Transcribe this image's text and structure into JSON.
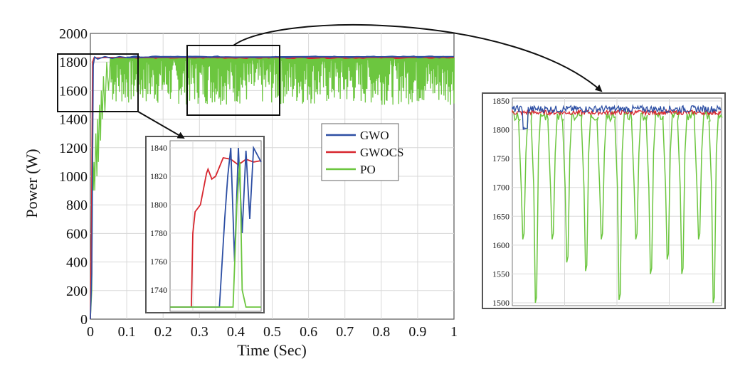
{
  "colors": {
    "GWO": "#2c4ea3",
    "GWOCS": "#d7262e",
    "PO": "#6cc63f",
    "grid": "#d8d8d8",
    "frame": "#555555"
  },
  "chart_data": [
    {
      "type": "line",
      "xlabel": "Time (Sec)",
      "ylabel": "Power (W)",
      "xlim": [
        0,
        1
      ],
      "ylim": [
        0,
        2000
      ],
      "xticks": [
        "0",
        "0.1",
        "0.2",
        "0.3",
        "0.4",
        "0.5",
        "0.6",
        "0.7",
        "0.8",
        "0.9",
        "1"
      ],
      "yticks": [
        "0",
        "200",
        "400",
        "600",
        "800",
        "1000",
        "1200",
        "1400",
        "1600",
        "1800",
        "2000"
      ],
      "grid": true,
      "legend_position": "right-center",
      "series": [
        {
          "name": "GWO",
          "color": "#2c4ea3",
          "x": [
            0,
            0.004,
            0.008,
            0.012,
            0.02,
            0.04,
            0.06,
            0.08,
            0.1,
            0.2,
            0.4,
            0.6,
            0.8,
            1.0
          ],
          "y": [
            0,
            320,
            1780,
            1835,
            1820,
            1838,
            1825,
            1838,
            1830,
            1838,
            1835,
            1838,
            1836,
            1838
          ]
        },
        {
          "name": "GWOCS",
          "color": "#d7262e",
          "x": [
            0,
            0.003,
            0.006,
            0.01,
            0.02,
            0.05,
            0.1,
            0.2,
            0.4,
            0.6,
            0.8,
            1.0
          ],
          "y": [
            0,
            650,
            1800,
            1830,
            1828,
            1832,
            1830,
            1832,
            1830,
            1832,
            1831,
            1832
          ]
        },
        {
          "name": "PO",
          "color": "#6cc63f",
          "x": [
            0,
            0.005,
            0.012,
            0.018,
            0.025,
            0.032,
            0.04,
            0.05,
            0.06,
            0.08,
            0.1,
            0.15,
            0.2,
            0.3,
            0.4,
            0.5,
            0.6,
            0.7,
            0.8,
            0.9,
            1.0
          ],
          "y": [
            0,
            200,
            900,
            1000,
            1250,
            1300,
            1420,
            1450,
            1500,
            1580,
            1600,
            1600,
            1620,
            1580,
            1600,
            1580,
            1600,
            1580,
            1600,
            1560,
            1580
          ]
        }
      ]
    },
    {
      "type": "line",
      "position": "zoom-inset-1",
      "xlim": [
        0,
        0.12
      ],
      "ylim": [
        1725,
        1845
      ],
      "yticks": [
        "1740",
        "1760",
        "1780",
        "1800",
        "1820",
        "1840"
      ],
      "grid": true,
      "series": [
        {
          "name": "GWOCS",
          "color": "#d7262e",
          "x": [
            0.0,
            0.028,
            0.03,
            0.033,
            0.04,
            0.048,
            0.05,
            0.055,
            0.06,
            0.07,
            0.08,
            0.09,
            0.1,
            0.11,
            0.12
          ],
          "y": [
            1728,
            1728,
            1780,
            1795,
            1800,
            1822,
            1825,
            1818,
            1820,
            1833,
            1832,
            1828,
            1832,
            1830,
            1831
          ]
        },
        {
          "name": "GWO",
          "color": "#2c4ea3",
          "x": [
            0.0,
            0.065,
            0.072,
            0.076,
            0.08,
            0.085,
            0.09,
            0.095,
            0.1,
            0.105,
            0.11,
            0.115,
            0.12
          ],
          "y": [
            1728,
            1728,
            1790,
            1820,
            1840,
            1760,
            1840,
            1780,
            1838,
            1790,
            1840,
            1835,
            1830
          ]
        },
        {
          "name": "PO",
          "color": "#6cc63f",
          "x": [
            0.0,
            0.083,
            0.088,
            0.092,
            0.095,
            0.1,
            0.11,
            0.12
          ],
          "y": [
            1728,
            1728,
            1800,
            1830,
            1740,
            1728,
            1728,
            1728
          ]
        }
      ]
    },
    {
      "type": "line",
      "position": "zoom-inset-2",
      "xlim": [
        0.3,
        0.5
      ],
      "ylim": [
        1495,
        1855
      ],
      "yticks": [
        "1500",
        "1550",
        "1600",
        "1650",
        "1700",
        "1750",
        "1800",
        "1850"
      ],
      "grid": true,
      "series": [
        {
          "name": "GWO",
          "color": "#2c4ea3",
          "x": [
            0.3,
            0.4,
            0.5
          ],
          "y": [
            1838,
            1836,
            1838
          ]
        },
        {
          "name": "GWOCS",
          "color": "#d7262e",
          "x": [
            0.3,
            0.4,
            0.5
          ],
          "y": [
            1830,
            1831,
            1830
          ]
        },
        {
          "name": "PO",
          "color": "#6cc63f",
          "dips_x": [
            0.31,
            0.322,
            0.338,
            0.352,
            0.37,
            0.385,
            0.402,
            0.418,
            0.432,
            0.448,
            0.462,
            0.478,
            0.492
          ],
          "dips_y": [
            1610,
            1500,
            1610,
            1570,
            1555,
            1610,
            1505,
            1610,
            1550,
            1575,
            1550,
            1610,
            1500
          ],
          "x": [
            0.3,
            0.5
          ],
          "y": [
            1830,
            1830
          ]
        }
      ]
    }
  ]
}
